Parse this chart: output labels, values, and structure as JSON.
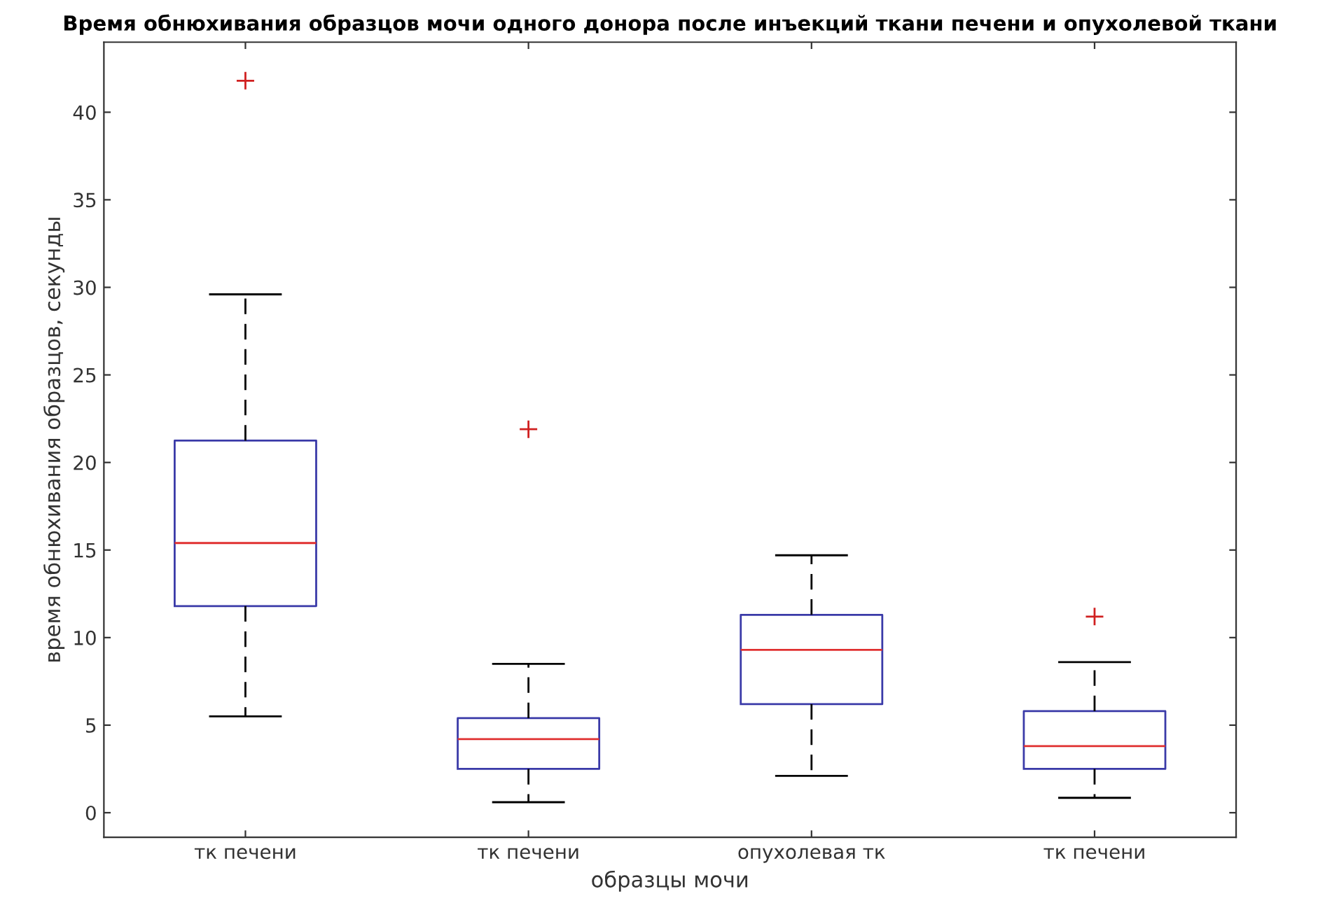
{
  "chart_data": {
    "type": "box",
    "title": "Время обнюхивания образцов мочи одного донора после инъекций ткани печени и опухолевой ткани",
    "xlabel": "образцы мочи",
    "ylabel": "время обнюхивания образцов, секунды",
    "categories": [
      "тк печени",
      "тк печени",
      "опухолевая тк",
      "тк печени"
    ],
    "series": [
      {
        "color": "#3a3aa8",
        "boxes": [
          {
            "low": 5.5,
            "q1": 11.8,
            "median": 15.4,
            "q3": 21.25,
            "high": 29.6,
            "outliers": [
              41.8
            ]
          },
          {
            "low": 0.6,
            "q1": 2.5,
            "median": 4.2,
            "q3": 5.4,
            "high": 8.5,
            "outliers": [
              21.9
            ]
          },
          {
            "low": 2.1,
            "q1": 6.2,
            "median": 9.3,
            "q3": 11.3,
            "high": 14.7
          },
          {
            "low": 0.85,
            "q1": 2.5,
            "median": 3.8,
            "q3": 5.8,
            "high": 8.6,
            "outliers": [
              11.2
            ]
          }
        ]
      }
    ],
    "ylim": [
      -1.4,
      44
    ],
    "yticks": [
      0,
      5,
      10,
      15,
      20,
      25,
      30,
      35,
      40
    ],
    "grid": false
  }
}
